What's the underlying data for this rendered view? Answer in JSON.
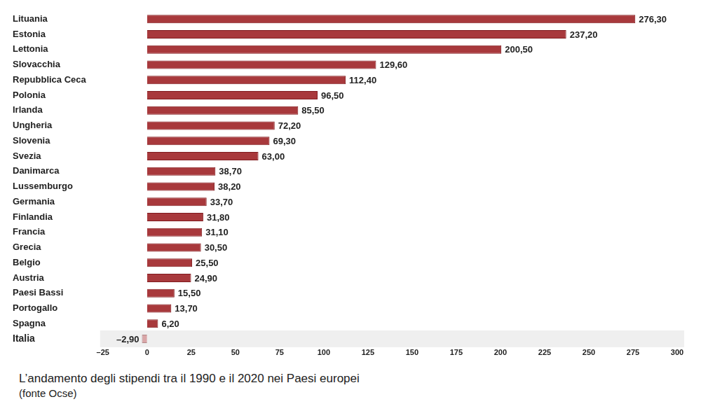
{
  "chart_data": {
    "type": "bar",
    "orientation": "horizontal",
    "title": "L’andamento degli stipendi tra il 1990 e il 2020 nei Paesi europei",
    "subtitle": "(fonte Ocse)",
    "categories": [
      "Lituania",
      "Estonia",
      "Lettonia",
      "Slovacchia",
      "Repubblica Ceca",
      "Polonia",
      "Irlanda",
      "Ungheria",
      "Slovenia",
      "Svezia",
      "Danimarca",
      "Lussemburgo",
      "Germania",
      "Finlandia",
      "Francia",
      "Grecia",
      "Belgio",
      "Austria",
      "Paesi Bassi",
      "Portogallo",
      "Spagna",
      "Italia"
    ],
    "values": [
      276.3,
      237.2,
      200.5,
      129.6,
      112.4,
      96.5,
      85.5,
      72.2,
      69.3,
      63.0,
      38.7,
      38.2,
      33.7,
      31.8,
      31.1,
      30.5,
      25.5,
      24.9,
      15.5,
      13.7,
      6.2,
      -2.9
    ],
    "value_labels": [
      "276,30",
      "237,20",
      "200,50",
      "129,60",
      "112,40",
      "96,50",
      "85,50",
      "72,20",
      "69,30",
      "63,00",
      "38,70",
      "38,20",
      "33,70",
      "31,80",
      "31,10",
      "30,50",
      "25,50",
      "24,90",
      "15,50",
      "13,70",
      "6,20",
      "–2,90"
    ],
    "colors": [
      "#a8393c",
      "#a8393c",
      "#a8393c",
      "#a8393c",
      "#a8393c",
      "#a8393c",
      "#a8393c",
      "#a8393c",
      "#a8393c",
      "#a8393c",
      "#a8393c",
      "#a8393c",
      "#a8393c",
      "#a8393c",
      "#a8393c",
      "#a8393c",
      "#a8393c",
      "#a8393c",
      "#a8393c",
      "#a8393c",
      "#a8393c",
      "#d9a6a7"
    ],
    "xlim": [
      -25,
      300
    ],
    "xticks": [
      {
        "value": -25,
        "label": "–25"
      },
      0,
      25,
      50,
      75,
      100,
      125,
      150,
      175,
      200,
      225,
      250,
      275,
      300
    ],
    "grid": false,
    "data_labels": true
  }
}
